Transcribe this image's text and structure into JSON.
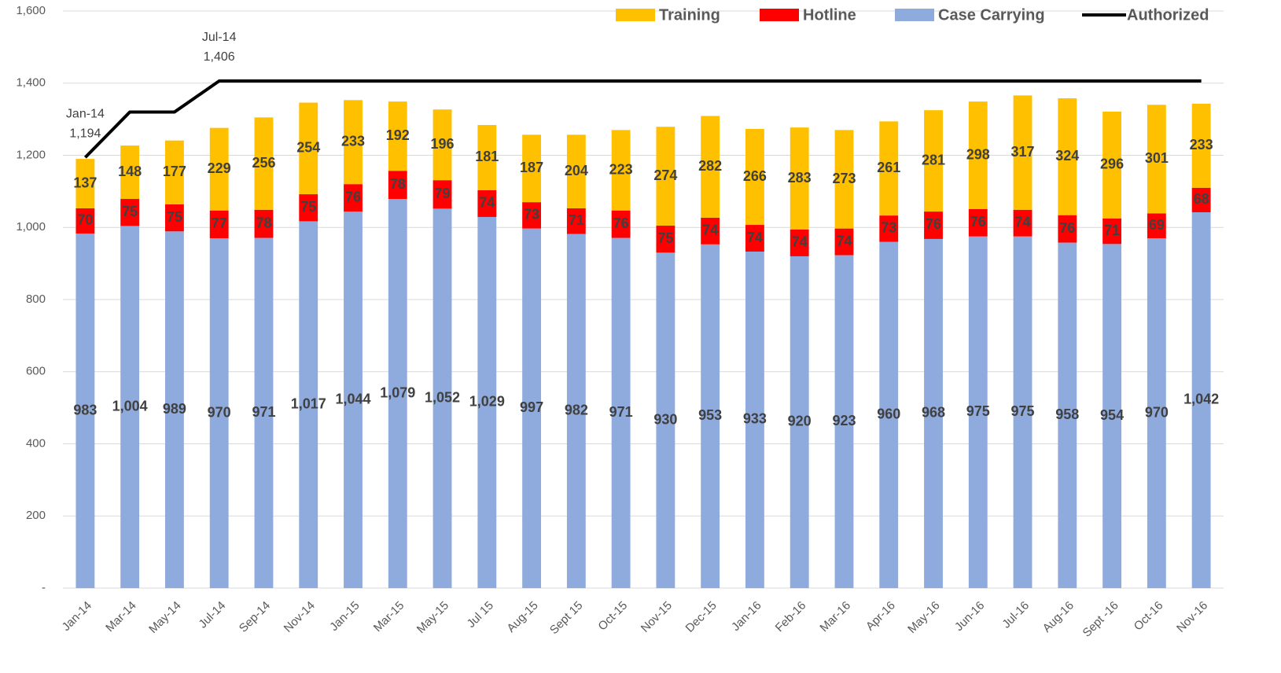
{
  "chart_data": {
    "type": "stacked_bar_line",
    "categories": [
      "Jan-14",
      "Mar-14",
      "May-14",
      "Jul-14",
      "Sep-14",
      "Nov-14",
      "Jan-15",
      "Mar-15",
      "May-15",
      "Jul 15",
      "Aug-15",
      "Sept 15",
      "Oct-15",
      "Nov-15",
      "Dec-15",
      "Jan-16",
      "Feb-16",
      "Mar-16",
      "Apr-16",
      "May-16",
      "Jun-16",
      "Jul-16",
      "Aug-16",
      "Sept -16",
      "Oct-16",
      "Nov-16"
    ],
    "series": [
      {
        "name": "Case Carrying",
        "color": "#8faadc",
        "kind": "bar",
        "values": [
          983,
          1004,
          989,
          970,
          971,
          1017,
          1044,
          1079,
          1052,
          1029,
          997,
          982,
          971,
          930,
          953,
          933,
          920,
          923,
          960,
          968,
          975,
          975,
          958,
          954,
          970,
          1042
        ],
        "value_labels": [
          "983",
          "1,004",
          "989",
          "970",
          "971",
          "1,017",
          "1,044",
          "1,079",
          "1,052",
          "1,029",
          "997",
          "982",
          "971",
          "930",
          "953",
          "933",
          "920",
          "923",
          "960",
          "968",
          "975",
          "975",
          "958",
          "954",
          "970",
          "1,042"
        ]
      },
      {
        "name": "Hotline",
        "color": "#ff0000",
        "kind": "bar",
        "values": [
          70,
          75,
          75,
          77,
          78,
          75,
          76,
          78,
          79,
          74,
          73,
          71,
          76,
          75,
          74,
          74,
          74,
          74,
          73,
          76,
          76,
          74,
          76,
          71,
          69,
          68
        ]
      },
      {
        "name": "Training",
        "color": "#ffc000",
        "kind": "bar",
        "values": [
          137,
          148,
          177,
          229,
          256,
          254,
          233,
          192,
          196,
          181,
          187,
          204,
          223,
          274,
          282,
          266,
          283,
          273,
          261,
          281,
          298,
          317,
          324,
          296,
          301,
          233
        ]
      },
      {
        "name": "Authorized",
        "color": "#000000",
        "kind": "line",
        "values": [
          1194,
          1320,
          1320,
          1406,
          1406,
          1406,
          1406,
          1406,
          1406,
          1406,
          1406,
          1406,
          1406,
          1406,
          1406,
          1406,
          1406,
          1406,
          1406,
          1406,
          1406,
          1406,
          1406,
          1406,
          1406,
          1406
        ],
        "value_labels": [
          "1,194",
          null,
          null,
          "1,406",
          null,
          null,
          null,
          null,
          null,
          null,
          null,
          null,
          null,
          null,
          null,
          null,
          null,
          null,
          null,
          null,
          null,
          null,
          null,
          null,
          null,
          null
        ]
      }
    ],
    "legend_order": [
      "Training",
      "Hotline",
      "Case Carrying",
      "Authorized"
    ],
    "ylim": [
      0,
      1600
    ],
    "yticks": [
      {
        "value": 0,
        "label": "-"
      },
      200,
      400,
      600,
      800,
      {
        "value": 1000,
        "label": "1,000"
      },
      {
        "value": 1200,
        "label": "1,200"
      },
      {
        "value": 1400,
        "label": "1,400"
      },
      {
        "value": 1600,
        "label": "1,600"
      }
    ],
    "grid": true
  }
}
